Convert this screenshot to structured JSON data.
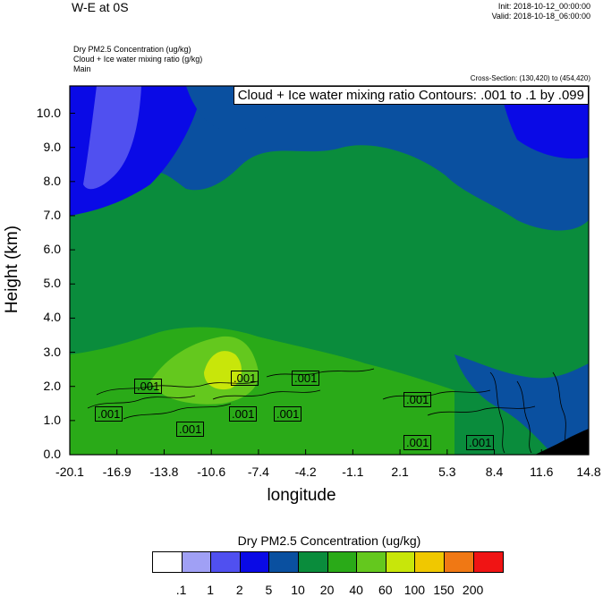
{
  "header": {
    "title": "W-E at 0S",
    "init": "Init: 2018-10-12_00:00:00",
    "valid": "Valid: 2018-10-18_06:00:00",
    "fields": [
      "Dry PM2.5 Concentration   (ug/kg)",
      "Cloud + Ice water mixing ratio   (g/kg)",
      "Main"
    ],
    "cross_section": "Cross-Section: (130,420) to (454,420)"
  },
  "chart_data": {
    "type": "heatmap",
    "title": "W-E at 0S",
    "contour_label": "Cloud + Ice water mixing ratio Contours: .001 to .1 by .099",
    "xlabel": "longitude",
    "ylabel": "Height (km)",
    "xlim": [
      -20.1,
      14.8
    ],
    "ylim": [
      0,
      10.8
    ],
    "xticks": [
      "-20.1",
      "-16.9",
      "-13.8",
      "-10.6",
      "-7.4",
      "-4.2",
      "-1.1",
      "2.1",
      "5.3",
      "8.4",
      "11.6",
      "14.8"
    ],
    "yticks": [
      "0.0",
      "1.0",
      "2.0",
      "3.0",
      "4.0",
      "5.0",
      "6.0",
      "7.0",
      "8.0",
      "9.0",
      "10.0"
    ],
    "contour_labels": [
      ".001",
      ".001",
      ".001",
      ".001",
      ".001",
      ".001",
      ".001",
      ".001",
      ".001",
      ".001"
    ],
    "colorbar": {
      "title": "Dry PM2.5 Concentration  (ug/kg)",
      "levels": [
        ".1",
        "1",
        "2",
        "5",
        "10",
        "20",
        "40",
        "60",
        "100",
        "150",
        "200"
      ],
      "colors": [
        "#ffffff",
        "#a0a0f5",
        "#5050f0",
        "#0a0ae6",
        "#0a50a0",
        "#0a8c3c",
        "#2aaa18",
        "#64c81e",
        "#c8e60a",
        "#f0c800",
        "#f07814",
        "#f01414"
      ]
    }
  }
}
